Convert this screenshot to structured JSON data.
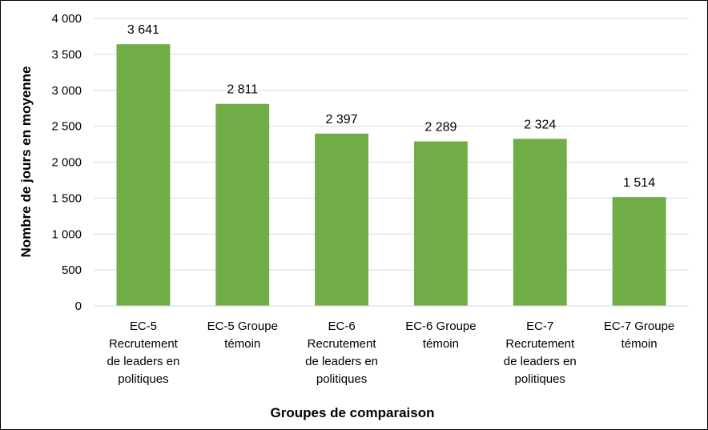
{
  "chart_data": {
    "type": "bar",
    "title": "",
    "xlabel": "Groupes de comparaison",
    "ylabel": "Nombre de jours en moyenne",
    "ylim": [
      0,
      4000
    ],
    "yticks": [
      "0",
      "500",
      "1 000",
      "1 500",
      "2 000",
      "2 500",
      "3 000",
      "3 500",
      "4 000"
    ],
    "grid": true,
    "legend": "none",
    "bar_color": "#70AD47",
    "categories": [
      [
        "EC-5",
        "Recrutement",
        "de leaders en",
        "politiques"
      ],
      [
        "EC-5 Groupe",
        "témoin"
      ],
      [
        "EC-6",
        "Recrutement",
        "de leaders en",
        "politiques"
      ],
      [
        "EC-6 Groupe",
        "témoin"
      ],
      [
        "EC-7",
        "Recrutement",
        "de leaders en",
        "politiques"
      ],
      [
        "EC-7 Groupe",
        "témoin"
      ]
    ],
    "values": [
      3641,
      2811,
      2397,
      2289,
      2324,
      1514
    ],
    "data_labels": [
      "3 641",
      "2 811",
      "2 397",
      "2 289",
      "2 324",
      "1 514"
    ]
  }
}
